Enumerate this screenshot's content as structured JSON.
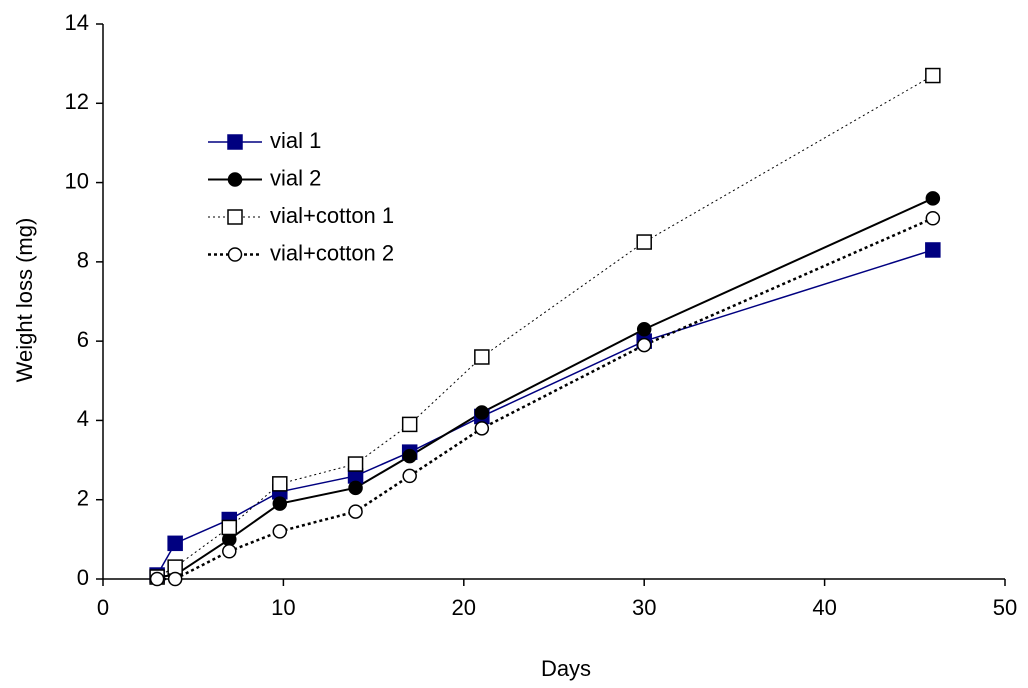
{
  "chart_data": {
    "type": "line",
    "xlabel": "Days",
    "ylabel": "Weight loss (mg)",
    "x": [
      3,
      4,
      7,
      9.8,
      14,
      17,
      21,
      30,
      46
    ],
    "xlim": [
      0,
      50
    ],
    "xticks": [
      0,
      10,
      20,
      30,
      40,
      50
    ],
    "ylim": [
      0,
      14
    ],
    "yticks": [
      0,
      2,
      4,
      6,
      8,
      10,
      12,
      14
    ],
    "grid": false,
    "legend": "upper left",
    "series": [
      {
        "name": "vial 1",
        "color": "#000080",
        "marker": "square",
        "filled": true,
        "dash": "none",
        "values": [
          0.1,
          0.9,
          1.5,
          2.2,
          2.6,
          3.2,
          4.1,
          6.0,
          8.3
        ]
      },
      {
        "name": "vial 2",
        "color": "#000000",
        "marker": "circle",
        "filled": true,
        "dash": "none",
        "values": [
          0.05,
          0.1,
          1.0,
          1.9,
          2.3,
          3.1,
          4.2,
          6.3,
          9.6
        ]
      },
      {
        "name": "vial+cotton 1",
        "color": "#000000",
        "marker": "square",
        "filled": false,
        "dash": "2,3",
        "values": [
          0.05,
          0.3,
          1.3,
          2.4,
          2.9,
          3.9,
          5.6,
          8.5,
          12.7
        ]
      },
      {
        "name": "vial+cotton 2",
        "color": "#000000",
        "marker": "circle",
        "filled": false,
        "dash": "3,3",
        "values": [
          0,
          0,
          0.7,
          1.2,
          1.7,
          2.6,
          3.8,
          5.9,
          9.1
        ]
      }
    ]
  }
}
